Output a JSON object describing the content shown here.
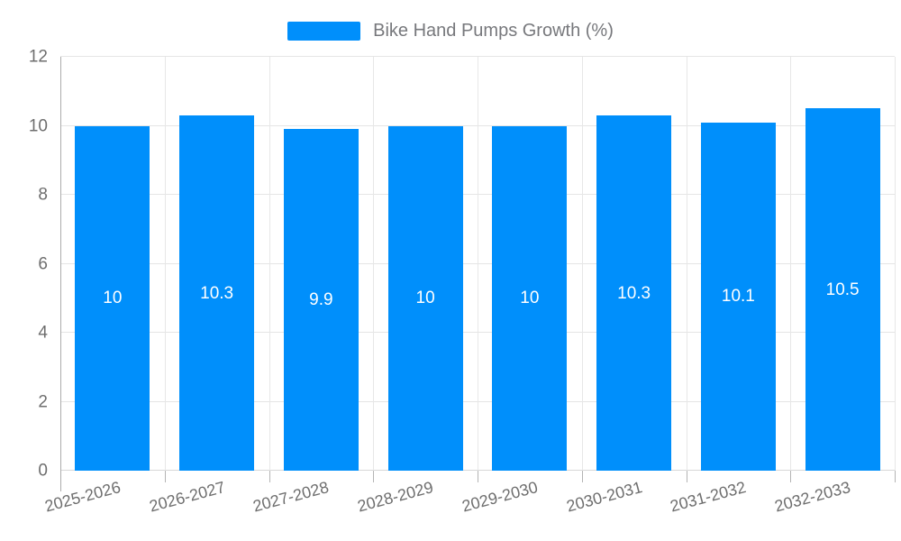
{
  "chart_data": {
    "type": "bar",
    "title": "Bike Hand Pumps Growth (%)",
    "legend": {
      "position": "top",
      "label": "Bike Hand Pumps Growth (%)"
    },
    "categories": [
      "2025-2026",
      "2026-2027",
      "2027-2028",
      "2028-2029",
      "2029-2030",
      "2030-2031",
      "2031-2032",
      "2032-2033"
    ],
    "values": [
      10,
      10.3,
      9.9,
      10,
      10,
      10.3,
      10.1,
      10.5
    ],
    "value_labels": [
      "10",
      "10.3",
      "9.9",
      "10",
      "10",
      "10.3",
      "10.1",
      "10.5"
    ],
    "xlabel": "",
    "ylabel": "",
    "ylim": [
      0,
      12
    ],
    "yticks": [
      0,
      2,
      4,
      6,
      8,
      10,
      12
    ],
    "grid": true,
    "x_label_rotation_deg": -15,
    "colors": {
      "bar": "#008FFB",
      "bar_value_label": "#ffffff",
      "tick_label": "#6e6e6e",
      "legend_label": "#77787c",
      "gridline": "#e5e5e5",
      "axis_line": "#acacac"
    }
  }
}
